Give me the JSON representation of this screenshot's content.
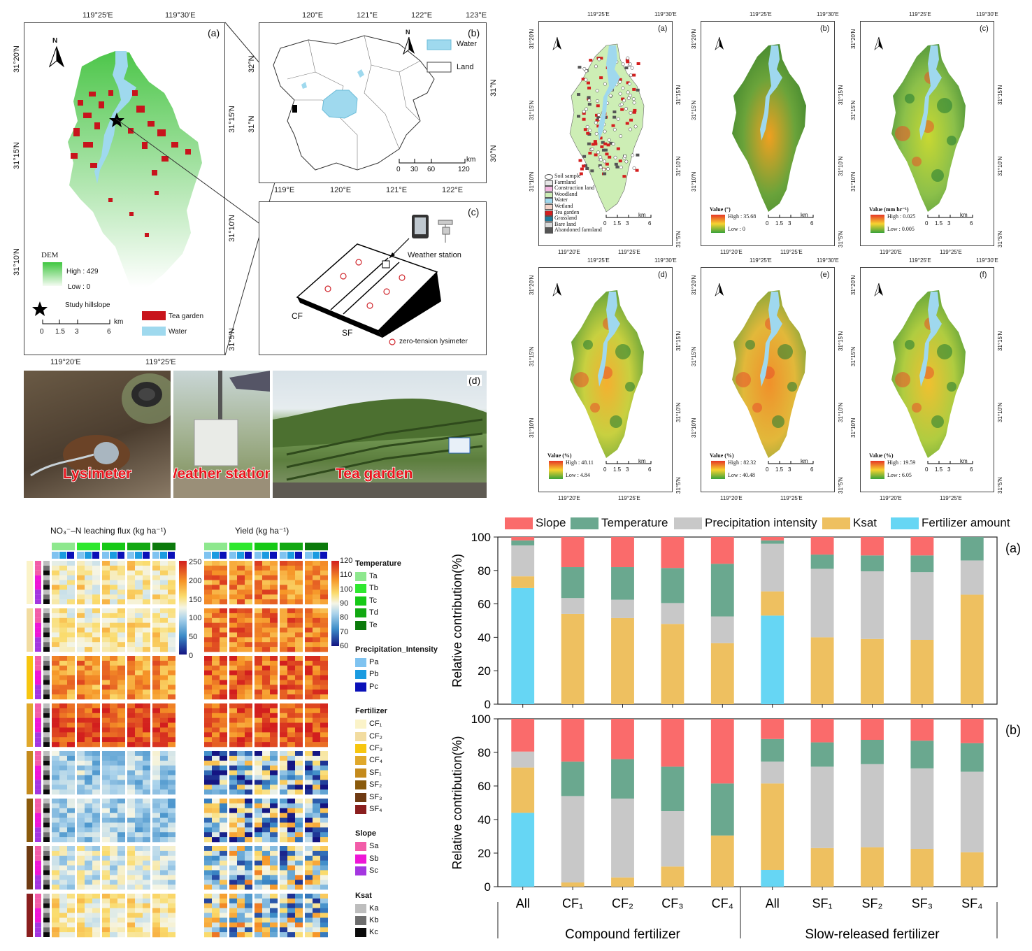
{
  "panel_a": {
    "label": "(a)",
    "top_ticks": [
      "119°25′E",
      "119°30′E"
    ],
    "bottom_ticks": [
      "119°20′E",
      "119°25′E"
    ],
    "left_ticks": [
      "31°20′N",
      "31°15′N",
      "31°10′N"
    ],
    "right_ticks": [
      "31°15′N",
      "31°10′N",
      "31°5′N"
    ],
    "north": "N",
    "dem_title": "DEM",
    "dem_high": "High : 429",
    "dem_low": "Low : 0",
    "study_hillslope": "Study hillslope",
    "tea_garden": "Tea garden",
    "water": "Water",
    "scale": [
      "0",
      "1.5",
      "3",
      "6"
    ],
    "scale_unit": "km"
  },
  "panel_b": {
    "label": "(b)",
    "top_ticks": [
      "120°E",
      "121°E",
      "122°E",
      "123°E"
    ],
    "bottom_ticks": [
      "119°E",
      "120°E",
      "121°E",
      "122°E"
    ],
    "left_ticks": [
      "32°N",
      "31°N"
    ],
    "right_ticks": [
      "31°N",
      "30°N"
    ],
    "north": "N",
    "legend_water": "Water",
    "legend_land": "Land",
    "scale": [
      "0",
      "30",
      "60",
      "120"
    ],
    "scale_unit": "km"
  },
  "panel_c": {
    "label": "(c)",
    "weather_station": "Weather station",
    "cf": "CF",
    "sf": "SF",
    "lysimeter": "zero-tension lysimeter"
  },
  "panel_d": {
    "label": "(d)",
    "captions": [
      "Lysimeter",
      "Weather station",
      "Tea garden"
    ]
  },
  "maps": {
    "top_ticks": [
      "119°25′E",
      "119°30′E"
    ],
    "bottom_ticks": [
      "119°20′E",
      "119°25′E"
    ],
    "left_ticks": [
      "31°20′N",
      "31°15′N",
      "31°10′N"
    ],
    "right_ticks": [
      "31°15′N",
      "31°10′N",
      "31°5′N"
    ],
    "scale": [
      "0",
      "1.5",
      "3",
      "6"
    ],
    "scale_unit": "km",
    "panels": [
      {
        "label": "(a)"
      },
      {
        "label": "(b)",
        "value_title": "Value (°)",
        "high": "High : 35.68",
        "low": "Low : 0"
      },
      {
        "label": "(c)",
        "value_title": "Value (mm hr⁻¹)",
        "high": "High : 0.025",
        "low": "Low : 0.005"
      },
      {
        "label": "(d)",
        "value_title": "Value (%)",
        "high": "High : 48.11",
        "low": "Low : 4.84"
      },
      {
        "label": "(e)",
        "value_title": "Value (%)",
        "high": "High : 82.32",
        "low": "Low : 40.48"
      },
      {
        "label": "(f)",
        "value_title": "Value (%)",
        "high": "High : 19.59",
        "low": "Low : 6.05"
      }
    ],
    "landuse_legend": [
      "Soil sample",
      "Farmland",
      "Construction land",
      "Woodland",
      "Water",
      "Wetland",
      "Tea garden",
      "Grassland",
      "Bare land",
      "Abandoned farmland"
    ],
    "landuse_colors": [
      "#ffffff",
      "#e6e6e6",
      "#f2b6e0",
      "#cdeeb5",
      "#9fd8ee",
      "#f3d2c7",
      "#d41e1e",
      "#1f7a9a",
      "#d9d9d9",
      "#555555"
    ]
  },
  "heatmap": {
    "title_left": "NO₃⁻–N leaching flux (kg ha⁻¹)",
    "title_right": "Yield (kg ha⁻¹)",
    "scale_left": [
      "250",
      "200",
      "150",
      "100",
      "50",
      "0"
    ],
    "scale_right": [
      "120",
      "110",
      "100",
      "90",
      "80",
      "70",
      "60"
    ],
    "legend": [
      {
        "group": "Temperature",
        "items": [
          {
            "label": "Ta",
            "color": "#8ee88e"
          },
          {
            "label": "Tb",
            "color": "#2ee82e"
          },
          {
            "label": "Tc",
            "color": "#16c916"
          },
          {
            "label": "Td",
            "color": "#12a812"
          },
          {
            "label": "Te",
            "color": "#0b7a0b"
          }
        ]
      },
      {
        "group": "Precipitation_Intensity",
        "items": [
          {
            "label": "Pa",
            "color": "#7fc3f0"
          },
          {
            "label": "Pb",
            "color": "#1a9be0"
          },
          {
            "label": "Pc",
            "color": "#0a10b8"
          }
        ]
      },
      {
        "group": "Fertilizer",
        "items": [
          {
            "label": "CF₁",
            "color": "#fbf3c8"
          },
          {
            "label": "CF₂",
            "color": "#f2dca0"
          },
          {
            "label": "CF₃",
            "color": "#f7c60f"
          },
          {
            "label": "CF₄",
            "color": "#e0a82a"
          },
          {
            "label": "SF₁",
            "color": "#c48a1c"
          },
          {
            "label": "SF₂",
            "color": "#8a5a0c"
          },
          {
            "label": "SF₃",
            "color": "#6e3a12"
          },
          {
            "label": "SF₄",
            "color": "#8a1e1e"
          }
        ]
      },
      {
        "group": "Slope",
        "items": [
          {
            "label": "Sa",
            "color": "#f25ca8"
          },
          {
            "label": "Sb",
            "color": "#ee16d6"
          },
          {
            "label": "Sc",
            "color": "#a436e0"
          }
        ]
      },
      {
        "group": "Ksat",
        "items": [
          {
            "label": "Ka",
            "color": "#bdbdbd"
          },
          {
            "label": "Kb",
            "color": "#6e6e6e"
          },
          {
            "label": "Kc",
            "color": "#0a0a0a"
          }
        ]
      }
    ]
  },
  "chart_data": {
    "type": "bar",
    "stacked": true,
    "ylabel": "Relative contribution(%)",
    "ylim": [
      0,
      100
    ],
    "yticks": [
      0,
      20,
      40,
      60,
      80,
      100
    ],
    "categories": [
      "All",
      "CF₁",
      "CF₂",
      "CF₃",
      "CF₄",
      "All",
      "SF₁",
      "SF₂",
      "SF₃",
      "SF₄"
    ],
    "groups": [
      "Compound fertilizer",
      "Slow-released fertilizer"
    ],
    "legend_placement": "top",
    "series_names": [
      "Slope",
      "Temperature",
      "Precipitation intensity",
      "Ksat",
      "Fertilizer amount"
    ],
    "series_colors": [
      "#fa6b6b",
      "#6aa88f",
      "#c8c8c8",
      "#eec060",
      "#66d6f4"
    ],
    "stack_order": [
      "Fertilizer amount",
      "Ksat",
      "Precipitation intensity",
      "Temperature",
      "Slope"
    ],
    "panels": [
      {
        "label": "(a)",
        "series": [
          {
            "name": "Fertilizer amount",
            "values": [
              69.5,
              0,
              0,
              0,
              0,
              53,
              0,
              0,
              0,
              0
            ]
          },
          {
            "name": "Ksat",
            "values": [
              7,
              54,
              51.5,
              48,
              36.5,
              14.5,
              40,
              39,
              38.5,
              65.5
            ]
          },
          {
            "name": "Precipitation intensity",
            "values": [
              18.5,
              9.5,
              11,
              12.5,
              16,
              28.5,
              41,
              40.5,
              40.5,
              20.5
            ]
          },
          {
            "name": "Temperature",
            "values": [
              3,
              18.5,
              19.5,
              21,
              31.5,
              2,
              8.5,
              9.5,
              10,
              14
            ]
          },
          {
            "name": "Slope",
            "values": [
              2,
              18,
              18,
              18.5,
              16,
              2,
              10.5,
              11,
              11,
              0
            ]
          }
        ]
      },
      {
        "label": "(b)",
        "series": [
          {
            "name": "Fertilizer amount",
            "values": [
              44,
              0,
              0,
              0,
              0,
              10,
              0,
              0,
              0,
              0
            ]
          },
          {
            "name": "Ksat",
            "values": [
              27,
              2.5,
              5.5,
              12,
              30.5,
              51.5,
              23,
              23.5,
              22.5,
              20.5
            ]
          },
          {
            "name": "Precipitation intensity",
            "values": [
              9.5,
              51.5,
              47,
              33,
              0,
              13,
              48.5,
              49.5,
              48,
              48
            ]
          },
          {
            "name": "Temperature",
            "values": [
              0,
              20.5,
              23.5,
              26.5,
              31,
              13.5,
              14.5,
              14.5,
              16.5,
              17
            ]
          },
          {
            "name": "Slope",
            "values": [
              19.5,
              25.5,
              24,
              28.5,
              38.5,
              12,
              14,
              12.5,
              13,
              14.5
            ]
          }
        ]
      }
    ]
  }
}
